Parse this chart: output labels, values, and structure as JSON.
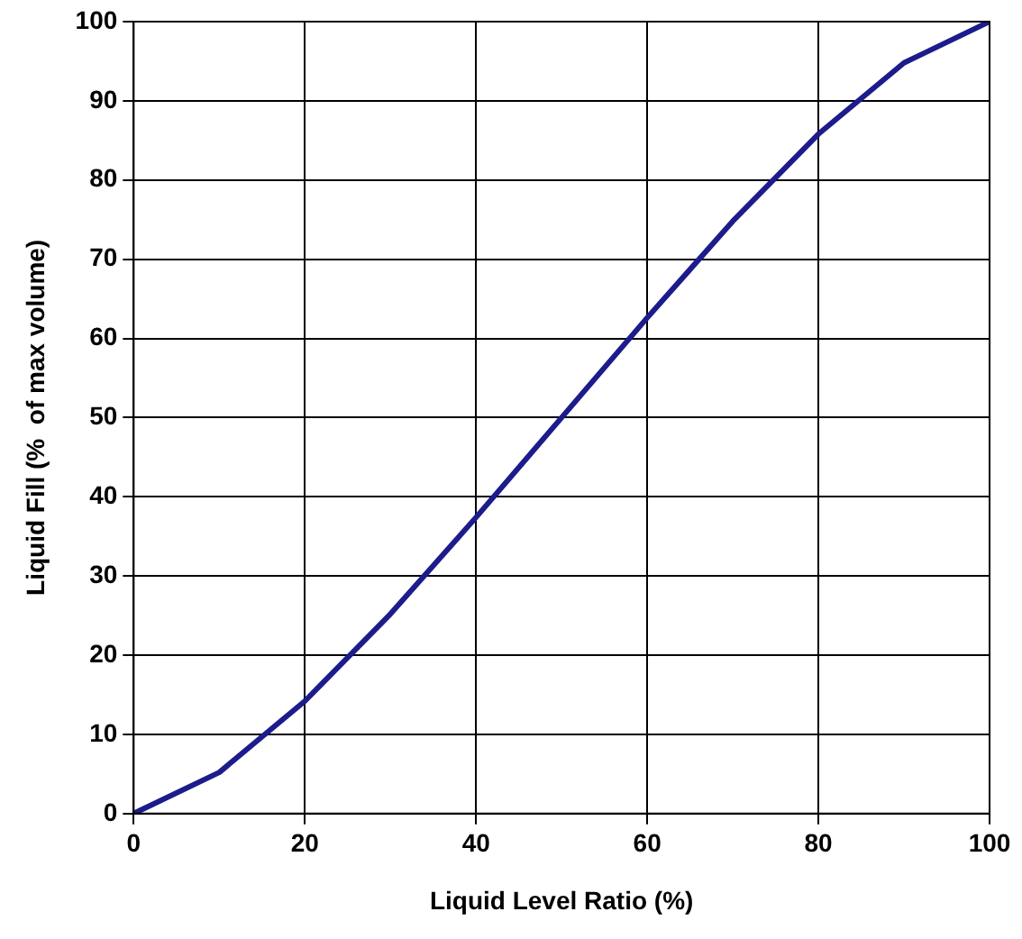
{
  "chart_data": {
    "type": "line",
    "xlabel": "Liquid Level Ratio (%)",
    "ylabel": "Liquid Fill (%  of max volume)",
    "x": [
      0,
      10,
      20,
      30,
      40,
      50,
      60,
      70,
      80,
      90,
      100
    ],
    "series": [
      {
        "color": "#1c1c8c",
        "values": [
          0,
          5.2,
          14.2,
          25.2,
          37.4,
          50,
          62.6,
          74.8,
          85.8,
          94.8,
          100
        ]
      }
    ],
    "xlim": [
      0,
      100
    ],
    "xticks": [
      0,
      20,
      40,
      60,
      80,
      100
    ],
    "ylim": [
      0,
      100
    ],
    "yticks": [
      0,
      10,
      20,
      30,
      40,
      50,
      60,
      70,
      80,
      90,
      100
    ],
    "grid": true,
    "legend": false,
    "marker": "none",
    "line_style": "solid"
  }
}
